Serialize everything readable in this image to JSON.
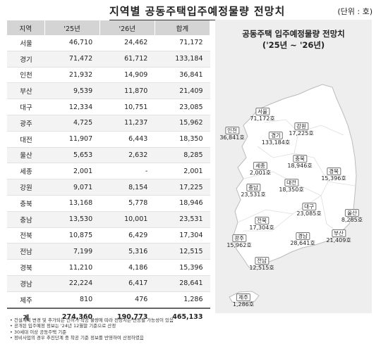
{
  "title": "지역별 공동주택입주예정물량 전망치",
  "unit": "(단위 : 호)",
  "chart_data": {
    "type": "table",
    "columns": [
      "지역",
      "'25년",
      "'26년",
      "합계"
    ],
    "rows": [
      [
        "서울",
        "46,710",
        "24,462",
        "71,172"
      ],
      [
        "경기",
        "71,472",
        "61,712",
        "133,184"
      ],
      [
        "인천",
        "21,932",
        "14,909",
        "36,841"
      ],
      [
        "부산",
        "9,539",
        "11,870",
        "21,409"
      ],
      [
        "대구",
        "12,334",
        "10,751",
        "23,085"
      ],
      [
        "광주",
        "4,725",
        "11,237",
        "15,962"
      ],
      [
        "대전",
        "11,907",
        "6,443",
        "18,350"
      ],
      [
        "울산",
        "5,653",
        "2,632",
        "8,285"
      ],
      [
        "세종",
        "2,001",
        "-",
        "2,001"
      ],
      [
        "강원",
        "9,071",
        "8,154",
        "17,225"
      ],
      [
        "충북",
        "13,168",
        "5,778",
        "18,946"
      ],
      [
        "충남",
        "13,530",
        "10,001",
        "23,531"
      ],
      [
        "전북",
        "10,875",
        "6,429",
        "17,304"
      ],
      [
        "전남",
        "7,199",
        "5,316",
        "12,515"
      ],
      [
        "경북",
        "11,210",
        "4,186",
        "15,396"
      ],
      [
        "경남",
        "22,224",
        "6,417",
        "28,641"
      ],
      [
        "제주",
        "810",
        "476",
        "1,286"
      ]
    ],
    "total": [
      "계",
      "274,360",
      "190,773",
      "465,133"
    ]
  },
  "notes": [
    "• 건설계획 변경 및 추가되는 인허가·착공 물량에 따라 전망치는 변동될 가능성이 있음",
    "• 공개된 입주예정 정보는 '24년 12월말 기준으로 산정",
    "• 30세대 이상 공동주택 기준",
    "• 정비사업의 경우 추진단계 중 착공 기준 정보를 반영하여 산정하였음"
  ],
  "map": {
    "title_line1": "공동주택 입주예정물량 전망치",
    "title_line2": "('25년 ~ '26년)",
    "labels": [
      {
        "region": "서울",
        "value": "71,172호"
      },
      {
        "region": "인천",
        "value": "36,841호"
      },
      {
        "region": "강원",
        "value": "17,225호"
      },
      {
        "region": "경기",
        "value": "133,184호"
      },
      {
        "region": "충북",
        "value": "18,946호"
      },
      {
        "region": "세종",
        "value": "2,001호"
      },
      {
        "region": "경북",
        "value": "15,396호"
      },
      {
        "region": "대전",
        "value": "18,350호"
      },
      {
        "region": "충남",
        "value": "23,531호"
      },
      {
        "region": "대구",
        "value": "23,085호"
      },
      {
        "region": "울산",
        "value": "8,285호"
      },
      {
        "region": "전북",
        "value": "17,304호"
      },
      {
        "region": "광주",
        "value": "15,962호"
      },
      {
        "region": "경남",
        "value": "28,641호"
      },
      {
        "region": "부산",
        "value": "21,409호"
      },
      {
        "region": "전남",
        "value": "12,515호"
      },
      {
        "region": "제주",
        "value": "1,286호"
      }
    ]
  }
}
